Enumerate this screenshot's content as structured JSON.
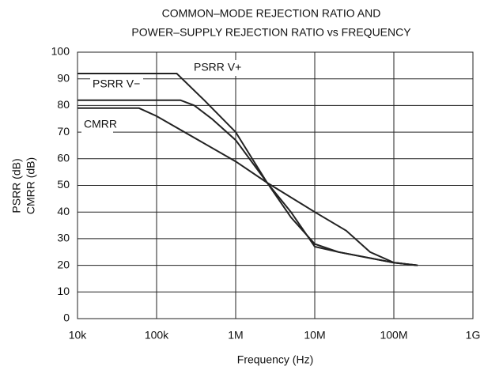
{
  "chart_data": {
    "type": "line",
    "title": [
      "COMMON–MODE REJECTION RATIO AND",
      "POWER–SUPPLY REJECTION RATIO vs FREQUENCY"
    ],
    "xlabel": "Frequency (Hz)",
    "ylabel": [
      "PSRR (dB)",
      "CMRR (dB)"
    ],
    "xscale": "log",
    "xlim": [
      10000,
      1000000000
    ],
    "xticks": [
      {
        "value": 10000,
        "label": "10k"
      },
      {
        "value": 100000,
        "label": "100k"
      },
      {
        "value": 1000000,
        "label": "1M"
      },
      {
        "value": 10000000,
        "label": "10M"
      },
      {
        "value": 100000000,
        "label": "100M"
      },
      {
        "value": 1000000000,
        "label": "1G"
      }
    ],
    "ylim": [
      0,
      100
    ],
    "yticks": [
      0,
      10,
      20,
      30,
      40,
      50,
      60,
      70,
      80,
      90,
      100
    ],
    "grid": true,
    "series": [
      {
        "name": "PSRR V+",
        "color": "#222222",
        "x": [
          10000,
          150000,
          180000,
          400000,
          1000000,
          2500000,
          5000000,
          10000000,
          20000000,
          100000000,
          200000000
        ],
        "values": [
          92,
          92,
          92,
          82,
          70,
          51,
          38,
          28,
          25,
          21,
          20
        ]
      },
      {
        "name": "PSRR V−",
        "color": "#222222",
        "x": [
          10000,
          200000,
          300000,
          500000,
          1000000,
          2500000,
          5000000,
          10000000,
          20000000,
          100000000,
          200000000
        ],
        "values": [
          82,
          82,
          80,
          75,
          67,
          51,
          40,
          27,
          25,
          21,
          20
        ]
      },
      {
        "name": "CMRR",
        "color": "#222222",
        "x": [
          10000,
          60000,
          100000,
          1000000,
          2500000,
          10000000,
          25000000,
          50000000,
          100000000,
          200000000
        ],
        "values": [
          79,
          79,
          76,
          59,
          51,
          40,
          33,
          25,
          21,
          20
        ]
      }
    ]
  }
}
